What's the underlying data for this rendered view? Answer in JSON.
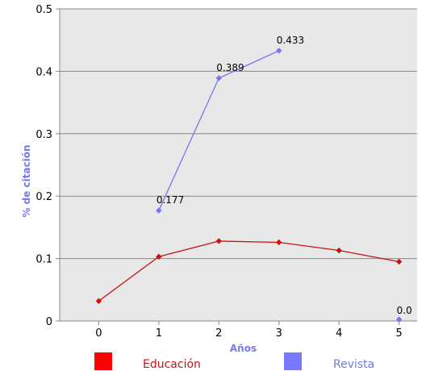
{
  "chart_data": {
    "type": "line",
    "xlabel": "Años",
    "ylabel": "% de citación",
    "x": [
      0,
      1,
      2,
      3,
      4,
      5
    ],
    "x_tick_labels": [
      "0",
      "1",
      "2",
      "3",
      "4",
      "5"
    ],
    "y_tick_labels": [
      "0",
      "0.1",
      "0.2",
      "0.3",
      "0.4",
      "0.5"
    ],
    "ylim": [
      0,
      0.5
    ],
    "xlim": [
      -0.65,
      5.3
    ],
    "grid": "horizontal",
    "legend_position": "bottom",
    "series": [
      {
        "name": "Educación",
        "color": "#cc1111",
        "legend_color": "#ff0000",
        "points": [
          [
            0,
            0.032
          ],
          [
            1,
            0.103
          ],
          [
            2,
            0.128
          ],
          [
            3,
            0.126
          ],
          [
            4,
            0.113
          ],
          [
            5,
            0.095
          ]
        ]
      },
      {
        "name": "Revista",
        "color": "#7777ee",
        "legend_color": "#7777ff",
        "points": [
          [
            1,
            0.177
          ],
          [
            2,
            0.389
          ],
          [
            3,
            0.433
          ]
        ],
        "extra_points": [
          [
            5,
            0.0
          ]
        ]
      }
    ],
    "data_labels": [
      {
        "series": "Revista",
        "x": 1,
        "y": 0.177,
        "text": "0.177"
      },
      {
        "series": "Revista",
        "x": 2,
        "y": 0.389,
        "text": "0.389"
      },
      {
        "series": "Revista",
        "x": 3,
        "y": 0.433,
        "text": "0.433"
      },
      {
        "series": "Revista",
        "x": 5,
        "y": 0.0,
        "text": "0.0"
      }
    ],
    "colors": {
      "plot_background": "#e8e8e8",
      "gridline": "#888888",
      "axis_title": "#7777ee",
      "tick_text": "#000000"
    }
  }
}
